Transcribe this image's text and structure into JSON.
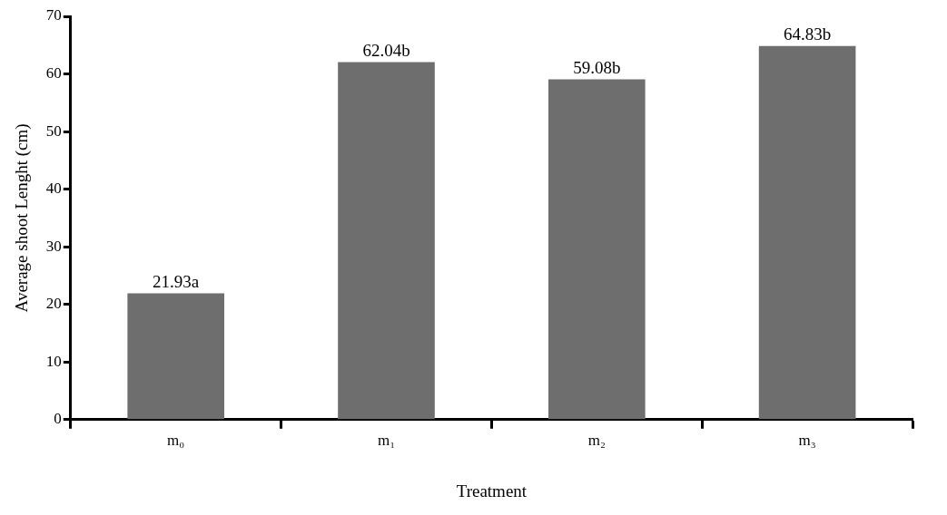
{
  "chart_data": {
    "type": "bar",
    "xlabel": "Treatment",
    "ylabel": "Average shoot Lenght (cm)",
    "categories": [
      "m₀",
      "m₁",
      "m₂",
      "m₃"
    ],
    "values": [
      21.93,
      62.04,
      59.08,
      64.83
    ],
    "value_labels": [
      "21.93a",
      "62.04b",
      "59.08b",
      "64.83b"
    ],
    "color": "#6e6e6e",
    "ylim": [
      0,
      70
    ],
    "yticks": [
      0,
      10,
      20,
      30,
      40,
      50,
      60,
      70
    ],
    "grid": false
  }
}
